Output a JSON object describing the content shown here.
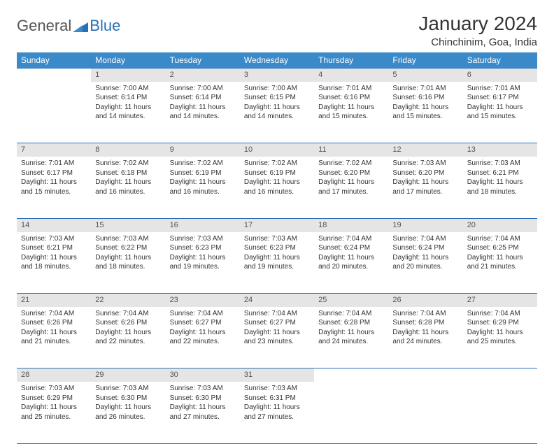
{
  "logo": {
    "text_general": "General",
    "text_blue": "Blue"
  },
  "header": {
    "month_title": "January 2024",
    "location": "Chinchinim, Goa, India"
  },
  "colors": {
    "header_bg": "#3a89c9",
    "header_text": "#ffffff",
    "daynum_bg": "#e5e5e5",
    "border": "#2a6fb5",
    "body_text": "#333333",
    "logo_blue": "#2a6fb5",
    "logo_gray": "#555555",
    "page_bg": "#ffffff"
  },
  "calendar": {
    "day_headers": [
      "Sunday",
      "Monday",
      "Tuesday",
      "Wednesday",
      "Thursday",
      "Friday",
      "Saturday"
    ],
    "weeks": [
      [
        null,
        {
          "n": "1",
          "sr": "7:00 AM",
          "ss": "6:14 PM",
          "dl": "11 hours and 14 minutes."
        },
        {
          "n": "2",
          "sr": "7:00 AM",
          "ss": "6:14 PM",
          "dl": "11 hours and 14 minutes."
        },
        {
          "n": "3",
          "sr": "7:00 AM",
          "ss": "6:15 PM",
          "dl": "11 hours and 14 minutes."
        },
        {
          "n": "4",
          "sr": "7:01 AM",
          "ss": "6:16 PM",
          "dl": "11 hours and 15 minutes."
        },
        {
          "n": "5",
          "sr": "7:01 AM",
          "ss": "6:16 PM",
          "dl": "11 hours and 15 minutes."
        },
        {
          "n": "6",
          "sr": "7:01 AM",
          "ss": "6:17 PM",
          "dl": "11 hours and 15 minutes."
        }
      ],
      [
        {
          "n": "7",
          "sr": "7:01 AM",
          "ss": "6:17 PM",
          "dl": "11 hours and 15 minutes."
        },
        {
          "n": "8",
          "sr": "7:02 AM",
          "ss": "6:18 PM",
          "dl": "11 hours and 16 minutes."
        },
        {
          "n": "9",
          "sr": "7:02 AM",
          "ss": "6:19 PM",
          "dl": "11 hours and 16 minutes."
        },
        {
          "n": "10",
          "sr": "7:02 AM",
          "ss": "6:19 PM",
          "dl": "11 hours and 16 minutes."
        },
        {
          "n": "11",
          "sr": "7:02 AM",
          "ss": "6:20 PM",
          "dl": "11 hours and 17 minutes."
        },
        {
          "n": "12",
          "sr": "7:03 AM",
          "ss": "6:20 PM",
          "dl": "11 hours and 17 minutes."
        },
        {
          "n": "13",
          "sr": "7:03 AM",
          "ss": "6:21 PM",
          "dl": "11 hours and 18 minutes."
        }
      ],
      [
        {
          "n": "14",
          "sr": "7:03 AM",
          "ss": "6:21 PM",
          "dl": "11 hours and 18 minutes."
        },
        {
          "n": "15",
          "sr": "7:03 AM",
          "ss": "6:22 PM",
          "dl": "11 hours and 18 minutes."
        },
        {
          "n": "16",
          "sr": "7:03 AM",
          "ss": "6:23 PM",
          "dl": "11 hours and 19 minutes."
        },
        {
          "n": "17",
          "sr": "7:03 AM",
          "ss": "6:23 PM",
          "dl": "11 hours and 19 minutes."
        },
        {
          "n": "18",
          "sr": "7:04 AM",
          "ss": "6:24 PM",
          "dl": "11 hours and 20 minutes."
        },
        {
          "n": "19",
          "sr": "7:04 AM",
          "ss": "6:24 PM",
          "dl": "11 hours and 20 minutes."
        },
        {
          "n": "20",
          "sr": "7:04 AM",
          "ss": "6:25 PM",
          "dl": "11 hours and 21 minutes."
        }
      ],
      [
        {
          "n": "21",
          "sr": "7:04 AM",
          "ss": "6:26 PM",
          "dl": "11 hours and 21 minutes."
        },
        {
          "n": "22",
          "sr": "7:04 AM",
          "ss": "6:26 PM",
          "dl": "11 hours and 22 minutes."
        },
        {
          "n": "23",
          "sr": "7:04 AM",
          "ss": "6:27 PM",
          "dl": "11 hours and 22 minutes."
        },
        {
          "n": "24",
          "sr": "7:04 AM",
          "ss": "6:27 PM",
          "dl": "11 hours and 23 minutes."
        },
        {
          "n": "25",
          "sr": "7:04 AM",
          "ss": "6:28 PM",
          "dl": "11 hours and 24 minutes."
        },
        {
          "n": "26",
          "sr": "7:04 AM",
          "ss": "6:28 PM",
          "dl": "11 hours and 24 minutes."
        },
        {
          "n": "27",
          "sr": "7:04 AM",
          "ss": "6:29 PM",
          "dl": "11 hours and 25 minutes."
        }
      ],
      [
        {
          "n": "28",
          "sr": "7:03 AM",
          "ss": "6:29 PM",
          "dl": "11 hours and 25 minutes."
        },
        {
          "n": "29",
          "sr": "7:03 AM",
          "ss": "6:30 PM",
          "dl": "11 hours and 26 minutes."
        },
        {
          "n": "30",
          "sr": "7:03 AM",
          "ss": "6:30 PM",
          "dl": "11 hours and 27 minutes."
        },
        {
          "n": "31",
          "sr": "7:03 AM",
          "ss": "6:31 PM",
          "dl": "11 hours and 27 minutes."
        },
        null,
        null,
        null
      ]
    ],
    "labels": {
      "sunrise": "Sunrise:",
      "sunset": "Sunset:",
      "daylight": "Daylight:"
    }
  }
}
